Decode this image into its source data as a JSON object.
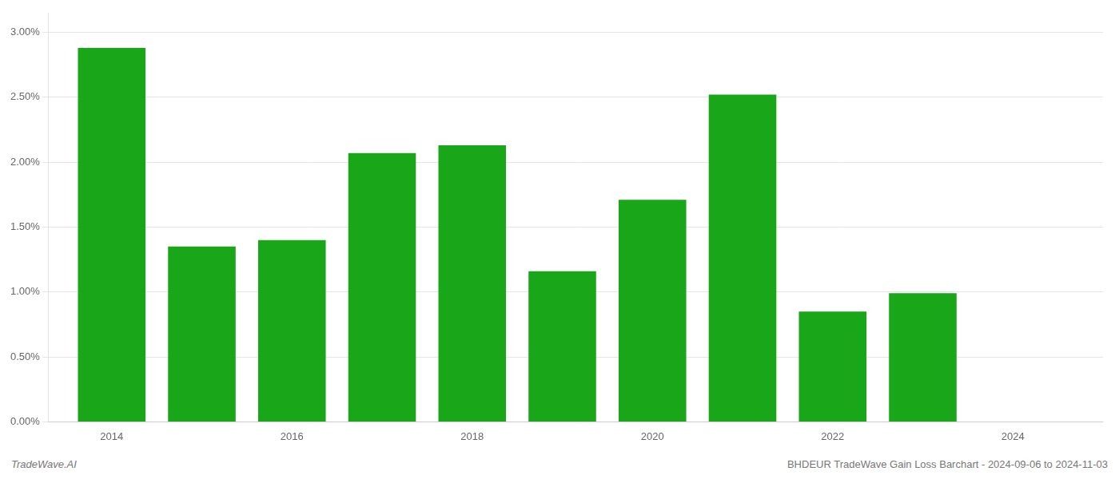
{
  "chart_data": {
    "type": "bar",
    "x": [
      2014,
      2015,
      2016,
      2017,
      2018,
      2019,
      2020,
      2021,
      2022,
      2023
    ],
    "values": [
      0.0288,
      0.0135,
      0.014,
      0.0207,
      0.0213,
      0.0116,
      0.0171,
      0.0252,
      0.0085,
      0.0099
    ],
    "color": "#1aa619",
    "xlim": [
      2013.3,
      2025.0
    ],
    "xticks": [
      2014,
      2016,
      2018,
      2020,
      2022,
      2024
    ],
    "ylim": [
      0.0,
      0.0315
    ],
    "yticks": [
      {
        "value": 0.0,
        "label": "0.00%"
      },
      {
        "value": 0.005,
        "label": "0.50%"
      },
      {
        "value": 0.01,
        "label": "1.00%"
      },
      {
        "value": 0.015,
        "label": "1.50%"
      },
      {
        "value": 0.02,
        "label": "2.00%"
      },
      {
        "value": 0.025,
        "label": "2.50%"
      },
      {
        "value": 0.03,
        "label": "3.00%"
      }
    ],
    "grid": true,
    "annotations": [
      "TradeWave.AI",
      "BHDEUR TradeWave Gain Loss Barchart - 2024-09-06 to 2024-11-03"
    ]
  }
}
